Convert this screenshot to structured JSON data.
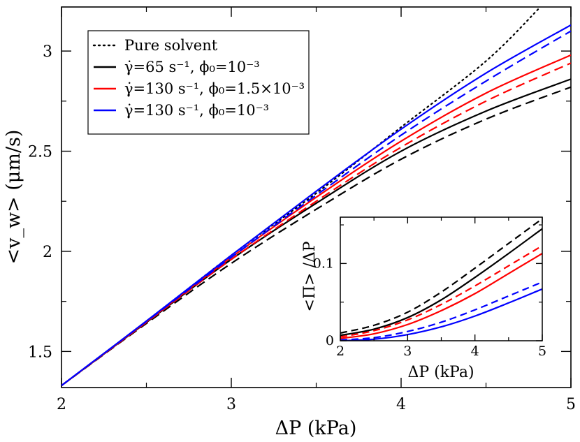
{
  "chart_data": {
    "type": "line",
    "main": {
      "xlabel": "ΔP  (kPa)",
      "ylabel": "<v_w> (μm/s)",
      "xlim": [
        2,
        5
      ],
      "ylim": [
        1.32,
        3.22
      ],
      "xticks": [
        2,
        3,
        4,
        5
      ],
      "xtick_labels": [
        "2",
        "3",
        "4",
        "5"
      ],
      "yticks": [
        1.5,
        2,
        2.5,
        3
      ],
      "ytick_labels": [
        "1.5",
        "2",
        "2.5",
        "3"
      ],
      "minor_x_step": 0.5,
      "minor_y_step": 0.25,
      "legend_position": "top-left",
      "legend": [
        {
          "key": "pure",
          "label": "Pure solvent",
          "color": "#000000",
          "style": "dotted"
        },
        {
          "key": "black",
          "label": "γ̇=65 s⁻¹,   ϕ₀=10⁻³",
          "color": "#000000",
          "style": "solid"
        },
        {
          "key": "red",
          "label": "γ̇=130 s⁻¹,  ϕ₀=1.5×10⁻³",
          "color": "#ff0000",
          "style": "solid"
        },
        {
          "key": "blue",
          "label": "γ̇=130 s⁻¹,  ϕ₀=10⁻³",
          "color": "#0000ff",
          "style": "solid"
        }
      ],
      "series": [
        {
          "name": "Pure solvent",
          "color": "#000000",
          "style": "dotted",
          "x": [
            2,
            2.5,
            3,
            3.5,
            4,
            4.5,
            4.82
          ],
          "y": [
            1.33,
            1.65,
            1.98,
            2.29,
            2.62,
            2.95,
            3.22
          ]
        },
        {
          "name": "γ̇=65 s⁻¹, ϕ₀=10⁻³ (solid)",
          "color": "#000000",
          "style": "solid",
          "x": [
            2,
            2.5,
            3,
            3.5,
            4,
            4.5,
            5
          ],
          "y": [
            1.33,
            1.645,
            1.96,
            2.24,
            2.5,
            2.7,
            2.86
          ]
        },
        {
          "name": "γ̇=65 s⁻¹, ϕ₀=10⁻³ (dashed)",
          "color": "#000000",
          "style": "dashed",
          "x": [
            2,
            2.5,
            3,
            3.5,
            4,
            4.5,
            5
          ],
          "y": [
            1.33,
            1.64,
            1.94,
            2.21,
            2.46,
            2.66,
            2.82
          ]
        },
        {
          "name": "γ̇=130 s⁻¹, ϕ₀=1.5×10⁻³ (solid)",
          "color": "#ff0000",
          "style": "solid",
          "x": [
            2,
            2.5,
            3,
            3.5,
            4,
            4.5,
            5
          ],
          "y": [
            1.33,
            1.648,
            1.97,
            2.27,
            2.55,
            2.79,
            2.98
          ]
        },
        {
          "name": "γ̇=130 s⁻¹, ϕ₀=1.5×10⁻³ (dashed)",
          "color": "#ff0000",
          "style": "dashed",
          "x": [
            2,
            2.5,
            3,
            3.5,
            4,
            4.5,
            5
          ],
          "y": [
            1.33,
            1.645,
            1.96,
            2.25,
            2.52,
            2.75,
            2.94
          ]
        },
        {
          "name": "γ̇=130 s⁻¹, ϕ₀=10⁻³ (solid)",
          "color": "#0000ff",
          "style": "solid",
          "x": [
            2,
            2.5,
            3,
            3.5,
            4,
            4.5,
            5
          ],
          "y": [
            1.33,
            1.652,
            1.98,
            2.3,
            2.61,
            2.89,
            3.13
          ]
        },
        {
          "name": "γ̇=130 s⁻¹, ϕ₀=10⁻³ (dashed)",
          "color": "#0000ff",
          "style": "dashed",
          "x": [
            2,
            2.5,
            3,
            3.5,
            4,
            4.5,
            5
          ],
          "y": [
            1.33,
            1.65,
            1.97,
            2.28,
            2.58,
            2.85,
            3.1
          ]
        }
      ]
    },
    "inset": {
      "xlabel": "ΔP  (kPa)",
      "ylabel": "<Π> /ΔP",
      "xlim": [
        2,
        5
      ],
      "ylim": [
        0,
        0.16
      ],
      "xticks": [
        2,
        3,
        4,
        5
      ],
      "xtick_labels": [
        "2",
        "3",
        "4",
        "5"
      ],
      "yticks": [
        0,
        0.1
      ],
      "ytick_labels": [
        "0",
        "0.1"
      ],
      "minor_x_step": 0.5,
      "minor_y_step": 0.05,
      "series": [
        {
          "name": "black solid",
          "color": "#000000",
          "style": "solid",
          "x": [
            2,
            2.5,
            3,
            3.5,
            4,
            4.5,
            5
          ],
          "y": [
            0.007,
            0.015,
            0.03,
            0.053,
            0.082,
            0.113,
            0.145
          ]
        },
        {
          "name": "black dashed",
          "color": "#000000",
          "style": "dashed",
          "x": [
            2,
            2.5,
            3,
            3.5,
            4,
            4.5,
            5
          ],
          "y": [
            0.01,
            0.02,
            0.037,
            0.063,
            0.094,
            0.126,
            0.158
          ]
        },
        {
          "name": "red solid",
          "color": "#ff0000",
          "style": "solid",
          "x": [
            2,
            2.5,
            3,
            3.5,
            4,
            4.5,
            5
          ],
          "y": [
            0.003,
            0.009,
            0.021,
            0.039,
            0.061,
            0.087,
            0.113
          ]
        },
        {
          "name": "red dashed",
          "color": "#ff0000",
          "style": "dashed",
          "x": [
            2,
            2.5,
            3,
            3.5,
            4,
            4.5,
            5
          ],
          "y": [
            0.005,
            0.013,
            0.027,
            0.047,
            0.071,
            0.097,
            0.123
          ]
        },
        {
          "name": "blue solid",
          "color": "#0000ff",
          "style": "solid",
          "x": [
            2,
            2.5,
            3,
            3.5,
            4,
            4.5,
            5
          ],
          "y": [
            0.0,
            0.002,
            0.008,
            0.018,
            0.032,
            0.049,
            0.067
          ]
        },
        {
          "name": "blue dashed",
          "color": "#0000ff",
          "style": "dashed",
          "x": [
            2,
            2.5,
            3,
            3.5,
            4,
            4.5,
            5
          ],
          "y": [
            0.001,
            0.004,
            0.012,
            0.024,
            0.04,
            0.058,
            0.076
          ]
        }
      ]
    }
  }
}
